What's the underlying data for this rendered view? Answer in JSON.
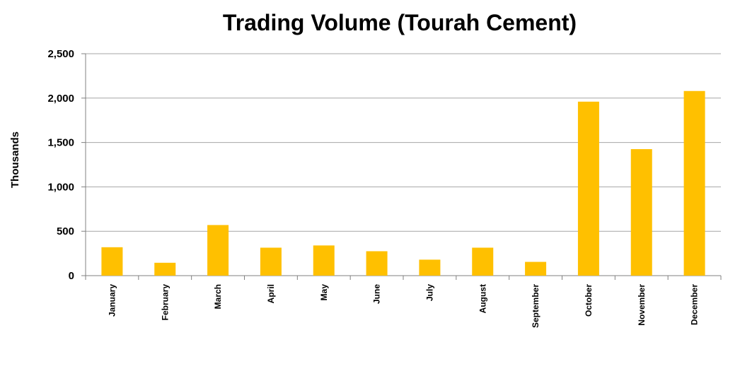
{
  "chart_data": {
    "type": "bar",
    "title": "Trading Volume (Tourah Cement)",
    "xlabel": "",
    "ylabel": "Thousands",
    "categories": [
      "January",
      "February",
      "March",
      "April",
      "May",
      "June",
      "July",
      "August",
      "September",
      "October",
      "November",
      "December"
    ],
    "values": [
      320,
      145,
      570,
      315,
      340,
      275,
      180,
      315,
      155,
      1960,
      1425,
      2080
    ],
    "ylim": [
      0,
      2500
    ],
    "yticks": [
      "0",
      "500",
      "1,000",
      "1,500",
      "2,000",
      "2,500"
    ],
    "ytick_values": [
      0,
      500,
      1000,
      1500,
      2000,
      2500
    ],
    "grid": true,
    "legend": "none",
    "colors": {
      "bar": "#FFC000",
      "grid": "#A6A6A6",
      "axis": "#808080"
    }
  }
}
